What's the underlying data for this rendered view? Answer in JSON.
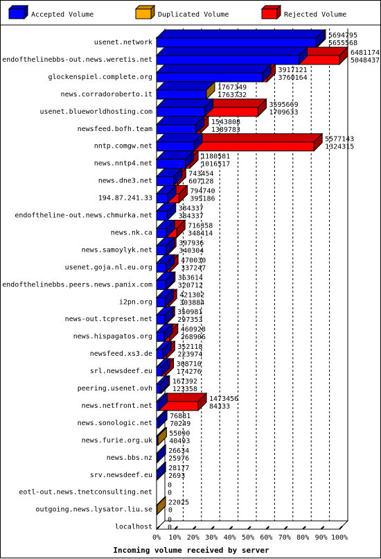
{
  "chart_data": {
    "type": "bar",
    "orientation": "horizontal",
    "stacked": true,
    "xlabel": "Incoming volume received by server",
    "xlim": [
      0,
      100
    ],
    "x_ticks": [
      "0%",
      "10%",
      "20%",
      "30%",
      "40%",
      "50%",
      "60%",
      "70%",
      "80%",
      "90%",
      "100%"
    ],
    "legend_position": "top",
    "series": [
      {
        "name": "Accepted Volume",
        "color": "#0000ff"
      },
      {
        "name": "Duplicated Volume",
        "color": "#ffaa00"
      },
      {
        "name": "Rejected Volume",
        "color": "#ff0000"
      }
    ],
    "rows": [
      {
        "server": "usenet.network",
        "total": 5694795,
        "accepted": 5655568,
        "duplicated": 0
      },
      {
        "server": "endofthelinebbs-out.news.weretis.net",
        "total": 6481174,
        "accepted": 5048437,
        "duplicated": 0
      },
      {
        "server": "glockenspiel.complete.org",
        "total": 3917121,
        "accepted": 3760164,
        "duplicated": 0
      },
      {
        "server": "news.corradoroberto.it",
        "total": 1767349,
        "accepted": 1763732,
        "duplicated": 3617
      },
      {
        "server": "usenet.blueworldhosting.com",
        "total": 3595669,
        "accepted": 1709633,
        "duplicated": 0
      },
      {
        "server": "newsfeed.bofh.team",
        "total": 1543808,
        "accepted": 1389783,
        "duplicated": 0
      },
      {
        "server": "nntp.comgw.net",
        "total": 5577143,
        "accepted": 1324315,
        "duplicated": 0
      },
      {
        "server": "news.nntp4.net",
        "total": 1180581,
        "accepted": 1016517,
        "duplicated": 0
      },
      {
        "server": "news.dne3.net",
        "total": 743454,
        "accepted": 607128,
        "duplicated": 0
      },
      {
        "server": "194.87.241.33",
        "total": 794740,
        "accepted": 395186,
        "duplicated": 0
      },
      {
        "server": "endoftheline-out.news.chmurka.net",
        "total": 384337,
        "accepted": 384337,
        "duplicated": 0
      },
      {
        "server": "news.nk.ca",
        "total": 716358,
        "accepted": 348414,
        "duplicated": 0
      },
      {
        "server": "news.samoylyk.net",
        "total": 397936,
        "accepted": 340304,
        "duplicated": 0
      },
      {
        "server": "usenet.goja.nl.eu.org",
        "total": 470030,
        "accepted": 337247,
        "duplicated": 0
      },
      {
        "server": "endofthelinebbs.peers.news.panix.com",
        "total": 363614,
        "accepted": 320712,
        "duplicated": 0
      },
      {
        "server": "i2pn.org",
        "total": 421302,
        "accepted": 303884,
        "duplicated": 0
      },
      {
        "server": "news-out.tcpreset.net",
        "total": 350981,
        "accepted": 297353,
        "duplicated": 0
      },
      {
        "server": "news.hispagatos.org",
        "total": 460928,
        "accepted": 268906,
        "duplicated": 0
      },
      {
        "server": "newsfeed.xs3.de",
        "total": 352118,
        "accepted": 223974,
        "duplicated": 0
      },
      {
        "server": "srl.newsdeef.eu",
        "total": 308710,
        "accepted": 174276,
        "duplicated": 0
      },
      {
        "server": "peering.usenet.ovh",
        "total": 167392,
        "accepted": 123358,
        "duplicated": 0
      },
      {
        "server": "news.netfront.net",
        "total": 1473456,
        "accepted": 84333,
        "duplicated": 0
      },
      {
        "server": "news.sonologic.net",
        "total": 76881,
        "accepted": 70249,
        "duplicated": 0
      },
      {
        "server": "news.furie.org.uk",
        "total": 55090,
        "accepted": 40493,
        "duplicated": 14597
      },
      {
        "server": "news.bbs.nz",
        "total": 26634,
        "accepted": 25976,
        "duplicated": 0
      },
      {
        "server": "srv.newsdeef.eu",
        "total": 28177,
        "accepted": 2693,
        "duplicated": 0
      },
      {
        "server": "eotl-out.news.tnetconsulting.net",
        "total": 0,
        "accepted": 0,
        "duplicated": 0
      },
      {
        "server": "outgoing.news.lysator.liu.se",
        "total": 22025,
        "accepted": 0,
        "duplicated": 22025
      },
      {
        "server": "localhost",
        "total": 0,
        "accepted": 0,
        "duplicated": 0
      }
    ]
  }
}
